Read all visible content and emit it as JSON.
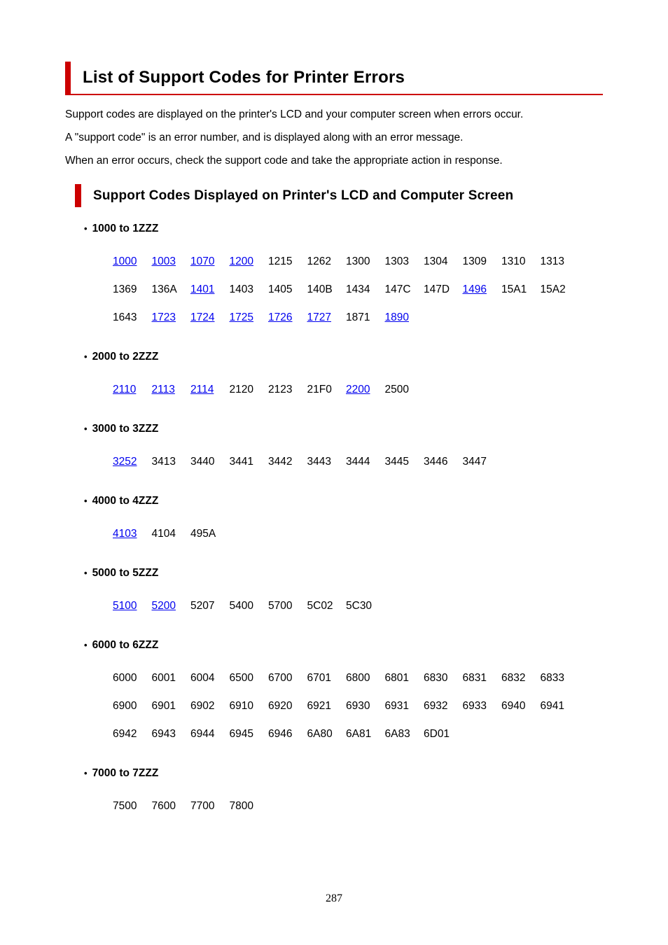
{
  "page": {
    "title": "List of Support Codes for Printer Errors",
    "page_number": "287",
    "accent_color": "#cc0000",
    "link_color": "#0000ee"
  },
  "intro": {
    "paragraphs": [
      "Support codes are displayed on the printer's LCD and your computer screen when errors occur.",
      "A \"support code\" is an error number, and is displayed along with an error message.",
      "When an error occurs, check the support code and take the appropriate action in response."
    ]
  },
  "section": {
    "heading": "Support Codes Displayed on Printer's LCD and Computer Screen",
    "bullet_glyph": "•",
    "groups": [
      {
        "label": "1000 to 1ZZZ",
        "rows": [
          [
            {
              "code": "1000",
              "link": true
            },
            {
              "code": "1003",
              "link": true
            },
            {
              "code": "1070",
              "link": true
            },
            {
              "code": "1200",
              "link": true
            },
            {
              "code": "1215",
              "link": false
            },
            {
              "code": "1262",
              "link": false
            },
            {
              "code": "1300",
              "link": false
            },
            {
              "code": "1303",
              "link": false
            },
            {
              "code": "1304",
              "link": false
            },
            {
              "code": "1309",
              "link": false
            },
            {
              "code": "1310",
              "link": false
            },
            {
              "code": "1313",
              "link": false
            }
          ],
          [
            {
              "code": "1369",
              "link": false
            },
            {
              "code": "136A",
              "link": false
            },
            {
              "code": "1401",
              "link": true
            },
            {
              "code": "1403",
              "link": false
            },
            {
              "code": "1405",
              "link": false
            },
            {
              "code": "140B",
              "link": false
            },
            {
              "code": "1434",
              "link": false
            },
            {
              "code": "147C",
              "link": false
            },
            {
              "code": "147D",
              "link": false
            },
            {
              "code": "1496",
              "link": true
            },
            {
              "code": "15A1",
              "link": false
            },
            {
              "code": "15A2",
              "link": false
            }
          ],
          [
            {
              "code": "1643",
              "link": false
            },
            {
              "code": "1723",
              "link": true
            },
            {
              "code": "1724",
              "link": true
            },
            {
              "code": "1725",
              "link": true
            },
            {
              "code": "1726",
              "link": true
            },
            {
              "code": "1727",
              "link": true
            },
            {
              "code": "1871",
              "link": false
            },
            {
              "code": "1890",
              "link": true
            }
          ]
        ]
      },
      {
        "label": "2000 to 2ZZZ",
        "rows": [
          [
            {
              "code": "2110",
              "link": true
            },
            {
              "code": "2113",
              "link": true
            },
            {
              "code": "2114",
              "link": true
            },
            {
              "code": "2120",
              "link": false
            },
            {
              "code": "2123",
              "link": false
            },
            {
              "code": "21F0",
              "link": false
            },
            {
              "code": "2200",
              "link": true
            },
            {
              "code": "2500",
              "link": false
            }
          ]
        ]
      },
      {
        "label": "3000 to 3ZZZ",
        "rows": [
          [
            {
              "code": "3252",
              "link": true
            },
            {
              "code": "3413",
              "link": false
            },
            {
              "code": "3440",
              "link": false
            },
            {
              "code": "3441",
              "link": false
            },
            {
              "code": "3442",
              "link": false
            },
            {
              "code": "3443",
              "link": false
            },
            {
              "code": "3444",
              "link": false
            },
            {
              "code": "3445",
              "link": false
            },
            {
              "code": "3446",
              "link": false
            },
            {
              "code": "3447",
              "link": false
            }
          ]
        ]
      },
      {
        "label": "4000 to 4ZZZ",
        "rows": [
          [
            {
              "code": "4103",
              "link": true
            },
            {
              "code": "4104",
              "link": false
            },
            {
              "code": "495A",
              "link": false
            }
          ]
        ]
      },
      {
        "label": "5000 to 5ZZZ",
        "rows": [
          [
            {
              "code": "5100",
              "link": true
            },
            {
              "code": "5200",
              "link": true
            },
            {
              "code": "5207",
              "link": false
            },
            {
              "code": "5400",
              "link": false
            },
            {
              "code": "5700",
              "link": false
            },
            {
              "code": "5C02",
              "link": false
            },
            {
              "code": "5C30",
              "link": false
            }
          ]
        ]
      },
      {
        "label": "6000 to 6ZZZ",
        "rows": [
          [
            {
              "code": "6000",
              "link": false
            },
            {
              "code": "6001",
              "link": false
            },
            {
              "code": "6004",
              "link": false
            },
            {
              "code": "6500",
              "link": false
            },
            {
              "code": "6700",
              "link": false
            },
            {
              "code": "6701",
              "link": false
            },
            {
              "code": "6800",
              "link": false
            },
            {
              "code": "6801",
              "link": false
            },
            {
              "code": "6830",
              "link": false
            },
            {
              "code": "6831",
              "link": false
            },
            {
              "code": "6832",
              "link": false
            },
            {
              "code": "6833",
              "link": false
            }
          ],
          [
            {
              "code": "6900",
              "link": false
            },
            {
              "code": "6901",
              "link": false
            },
            {
              "code": "6902",
              "link": false
            },
            {
              "code": "6910",
              "link": false
            },
            {
              "code": "6920",
              "link": false
            },
            {
              "code": "6921",
              "link": false
            },
            {
              "code": "6930",
              "link": false
            },
            {
              "code": "6931",
              "link": false
            },
            {
              "code": "6932",
              "link": false
            },
            {
              "code": "6933",
              "link": false
            },
            {
              "code": "6940",
              "link": false
            },
            {
              "code": "6941",
              "link": false
            }
          ],
          [
            {
              "code": "6942",
              "link": false
            },
            {
              "code": "6943",
              "link": false
            },
            {
              "code": "6944",
              "link": false
            },
            {
              "code": "6945",
              "link": false
            },
            {
              "code": "6946",
              "link": false
            },
            {
              "code": "6A80",
              "link": false
            },
            {
              "code": "6A81",
              "link": false
            },
            {
              "code": "6A83",
              "link": false
            },
            {
              "code": "6D01",
              "link": false
            }
          ]
        ]
      },
      {
        "label": "7000 to 7ZZZ",
        "rows": [
          [
            {
              "code": "7500",
              "link": false
            },
            {
              "code": "7600",
              "link": false
            },
            {
              "code": "7700",
              "link": false
            },
            {
              "code": "7800",
              "link": false
            }
          ]
        ]
      }
    ]
  }
}
